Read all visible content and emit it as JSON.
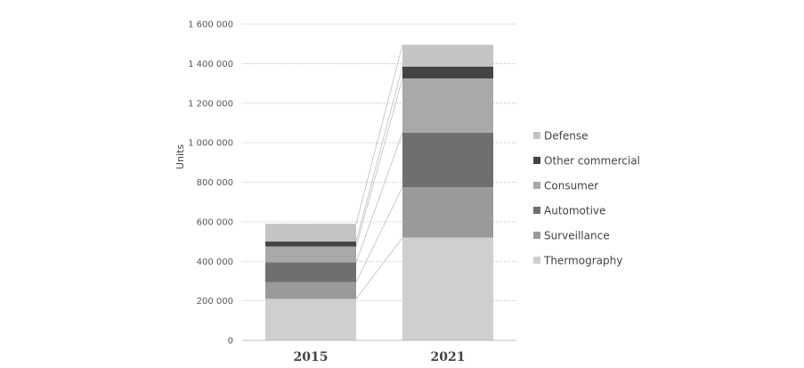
{
  "chart_data": {
    "type": "bar",
    "stacked": true,
    "categories": [
      "2015",
      "2021"
    ],
    "ylabel": "Units",
    "xlabel": "",
    "ylim": [
      0,
      1600000
    ],
    "yticks": [
      "0",
      "200 000",
      "400 000",
      "600 000",
      "800 000",
      "1 000 000",
      "1 200 000",
      "1 400 000",
      "1 600 000"
    ],
    "grid": "horizontal dotted",
    "legend_position": "right",
    "series": [
      {
        "name": "Thermography",
        "values": [
          210000,
          520000
        ],
        "color": "#cfcfcf"
      },
      {
        "name": "Surveillance",
        "values": [
          85000,
          255000
        ],
        "color": "#9a9a9a"
      },
      {
        "name": "Automotive",
        "values": [
          100000,
          275000
        ],
        "color": "#6f6f6f"
      },
      {
        "name": "Consumer",
        "values": [
          80000,
          275000
        ],
        "color": "#a9a9a9"
      },
      {
        "name": "Other commercial",
        "values": [
          25000,
          60000
        ],
        "color": "#444444"
      },
      {
        "name": "Defense",
        "values": [
          90000,
          110000
        ],
        "color": "#c4c4c4"
      }
    ],
    "legend_order": [
      "Defense",
      "Other commercial",
      "Consumer",
      "Automotive",
      "Surveillance",
      "Thermography"
    ]
  }
}
